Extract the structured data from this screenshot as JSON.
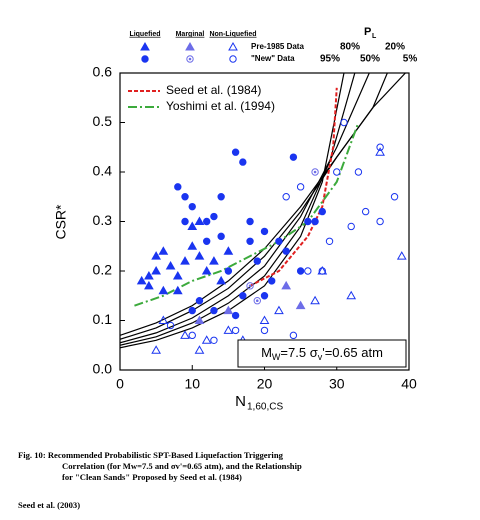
{
  "chart_data": {
    "type": "scatter",
    "y_label": "CSR*",
    "x_label": "N",
    "x_label_sub": "1,60,CS",
    "xlim": [
      0,
      40
    ],
    "xticks": [
      0,
      10,
      20,
      30,
      40
    ],
    "ylim": [
      0,
      0.6
    ],
    "yticks": [
      {
        "value": 0,
        "label": "0.0"
      },
      0.1,
      0.2,
      0.3,
      0.4,
      0.5,
      0.6
    ],
    "legend_location": "upper left",
    "pl_label": "P",
    "pl_label_sub": "L",
    "legend_rows": [
      "Pre-1985 Data",
      "\"New\" Data"
    ],
    "markers": [
      "triangle",
      "circle"
    ],
    "point_groups": [
      {
        "name": "Liquefied",
        "style": "filled",
        "color": "#1a35f0",
        "sets": [
          {
            "x": [
              3,
              4,
              5,
              5,
              6,
              7,
              8,
              9,
              10,
              11,
              12,
              13,
              14,
              4,
              6,
              10,
              15,
              8,
              11
            ],
            "values": [
              0.18,
              0.17,
              0.2,
              0.23,
              0.24,
              0.21,
              0.19,
              0.22,
              0.25,
              0.23,
              0.2,
              0.22,
              0.18,
              0.19,
              0.16,
              0.29,
              0.24,
              0.16,
              0.3
            ]
          },
          {
            "x": [
              8,
              9,
              10,
              12,
              13,
              14,
              16,
              17,
              18,
              20,
              22,
              24,
              26,
              12,
              15,
              17,
              19,
              23,
              27,
              28,
              11,
              13,
              16,
              21,
              25,
              14,
              9,
              18,
              10,
              20
            ],
            "values": [
              0.37,
              0.35,
              0.33,
              0.3,
              0.31,
              0.35,
              0.44,
              0.42,
              0.3,
              0.28,
              0.26,
              0.43,
              0.3,
              0.26,
              0.2,
              0.15,
              0.22,
              0.24,
              0.3,
              0.32,
              0.14,
              0.12,
              0.11,
              0.18,
              0.2,
              0.27,
              0.3,
              0.26,
              0.12,
              0.15
            ]
          }
        ]
      },
      {
        "name": "Marginal",
        "style": "dotted",
        "color": "#6d6de8",
        "sets": [
          {
            "x": [
              11,
              15,
              23,
              25
            ],
            "values": [
              0.1,
              0.12,
              0.17,
              0.13
            ]
          },
          {
            "x": [
              18,
              27,
              19
            ],
            "values": [
              0.17,
              0.4,
              0.14
            ]
          }
        ]
      },
      {
        "name": "Non-Liquefied",
        "style": "open",
        "color": "#1a35f0",
        "sets": [
          {
            "x": [
              6,
              9,
              12,
              15,
              5,
              11,
              17,
              27,
              28,
              32,
              36,
              39,
              22,
              20
            ],
            "values": [
              0.1,
              0.07,
              0.06,
              0.08,
              0.04,
              0.04,
              0.06,
              0.14,
              0.2,
              0.15,
              0.44,
              0.23,
              0.12,
              0.1
            ]
          },
          {
            "x": [
              7,
              10,
              13,
              16,
              20,
              24,
              21,
              26,
              28,
              30,
              31,
              33,
              36,
              38,
              36,
              34,
              29,
              25,
              23,
              32
            ],
            "values": [
              0.09,
              0.07,
              0.06,
              0.08,
              0.08,
              0.07,
              0.05,
              0.2,
              0.2,
              0.4,
              0.5,
              0.4,
              0.45,
              0.35,
              0.3,
              0.32,
              0.26,
              0.37,
              0.35,
              0.29
            ]
          }
        ]
      }
    ],
    "curves": [
      {
        "name": "95%",
        "color": "#000000",
        "x": [
          0,
          5,
          10,
          15,
          20,
          25,
          28,
          31
        ],
        "values": [
          0.045,
          0.06,
          0.085,
          0.12,
          0.17,
          0.27,
          0.38,
          0.6
        ]
      },
      {
        "name": "80%",
        "color": "#000000",
        "x": [
          0,
          5,
          10,
          15,
          20,
          25,
          29,
          32.5
        ],
        "values": [
          0.05,
          0.067,
          0.095,
          0.135,
          0.19,
          0.29,
          0.42,
          0.6
        ]
      },
      {
        "name": "50%",
        "color": "#000000",
        "x": [
          0,
          5,
          10,
          15,
          20,
          25,
          30,
          34.5
        ],
        "values": [
          0.055,
          0.075,
          0.105,
          0.15,
          0.21,
          0.31,
          0.45,
          0.6
        ]
      },
      {
        "name": "20%",
        "color": "#000000",
        "x": [
          0,
          5,
          10,
          15,
          20,
          25,
          30,
          35,
          37
        ],
        "values": [
          0.062,
          0.085,
          0.12,
          0.165,
          0.23,
          0.32,
          0.43,
          0.53,
          0.6
        ]
      },
      {
        "name": "5%",
        "color": "#000000",
        "x": [
          0,
          5,
          10,
          15,
          20,
          25,
          30,
          35,
          39.5
        ],
        "values": [
          0.07,
          0.095,
          0.13,
          0.18,
          0.245,
          0.33,
          0.43,
          0.53,
          0.6
        ]
      }
    ],
    "reference_lines": [
      {
        "name": "Seed et al. (1984)",
        "color": "#e02020",
        "dash": "dashed",
        "x": [
          18,
          22,
          26,
          28,
          29.5,
          30
        ],
        "values": [
          0.17,
          0.2,
          0.27,
          0.33,
          0.45,
          0.57
        ]
      },
      {
        "name": "Yoshimi et al. (1994)",
        "color": "#3caa3c",
        "dash": "dash-dot",
        "x": [
          2,
          6,
          10,
          14,
          18,
          22,
          26,
          30,
          33
        ],
        "values": [
          0.13,
          0.15,
          0.18,
          0.2,
          0.23,
          0.26,
          0.3,
          0.38,
          0.5
        ]
      }
    ],
    "annotation_parts": [
      "M",
      "W",
      "=7.5 σ",
      "v",
      "'=0.65 atm"
    ]
  },
  "caption": [
    "Fig. 10: Recommended Probabilistic SPT-Based Liquefaction Triggering",
    "Correlation (for Mw=7.5 and σv'=0.65 atm), and the Relationship",
    "for \"Clean Sands\" Proposed by Seed et al. (1984)"
  ],
  "source": "Seed et al. (2003)"
}
